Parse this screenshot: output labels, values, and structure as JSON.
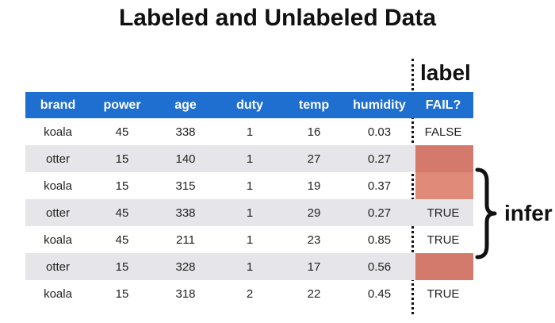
{
  "title": "Labeled and Unlabeled Data",
  "label_heading": "label",
  "infer_text": "infer",
  "table": {
    "columns": [
      "brand",
      "power",
      "age",
      "duty",
      "temp",
      "humidity",
      "FAIL?"
    ],
    "rows": [
      {
        "brand": "koala",
        "power": "45",
        "age": "338",
        "duty": "1",
        "temp": "16",
        "humidity": "0.03",
        "fail": "FALSE",
        "missing": false
      },
      {
        "brand": "otter",
        "power": "15",
        "age": "140",
        "duty": "1",
        "temp": "27",
        "humidity": "0.27",
        "fail": "",
        "missing": true
      },
      {
        "brand": "koala",
        "power": "15",
        "age": "315",
        "duty": "1",
        "temp": "19",
        "humidity": "0.37",
        "fail": "",
        "missing": true
      },
      {
        "brand": "otter",
        "power": "45",
        "age": "338",
        "duty": "1",
        "temp": "29",
        "humidity": "0.27",
        "fail": "TRUE",
        "missing": false
      },
      {
        "brand": "koala",
        "power": "45",
        "age": "211",
        "duty": "1",
        "temp": "23",
        "humidity": "0.85",
        "fail": "TRUE",
        "missing": false
      },
      {
        "brand": "otter",
        "power": "15",
        "age": "328",
        "duty": "1",
        "temp": "17",
        "humidity": "0.56",
        "fail": "",
        "missing": true
      },
      {
        "brand": "koala",
        "power": "15",
        "age": "318",
        "duty": "2",
        "temp": "22",
        "humidity": "0.45",
        "fail": "TRUE",
        "missing": false
      }
    ]
  },
  "colors": {
    "header_bg": "#1e6fcf",
    "alt_row_bg": "#e6e6ea",
    "missing_label": "#d47a6c"
  }
}
